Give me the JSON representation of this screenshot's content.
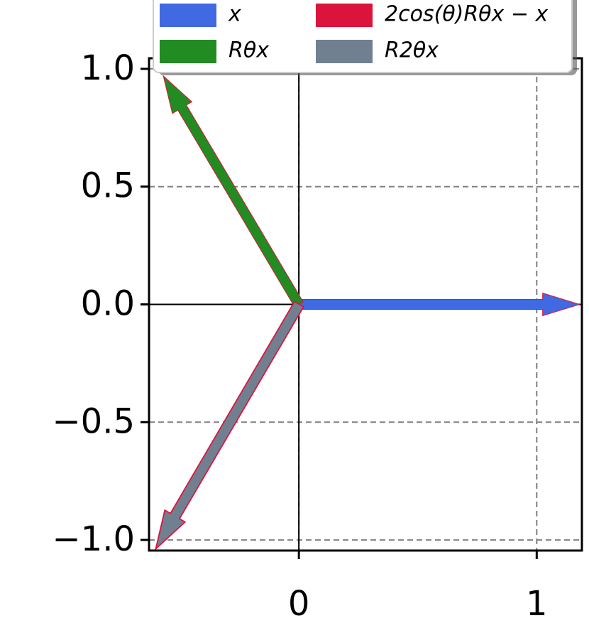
{
  "chart_data": {
    "type": "quiver",
    "series": [
      {
        "name": "x",
        "color": "#4169e1",
        "values": [
          1.18,
          0
        ]
      },
      {
        "name": "Rθx",
        "color": "#228b22",
        "values": [
          -0.57,
          0.97
        ]
      },
      {
        "name": "2cos(θ)Rθx − x",
        "color": "#dc143c",
        "values": [
          -0.6,
          -1.035
        ]
      },
      {
        "name": "R2θx",
        "color": "#708090",
        "values": [
          -0.6,
          -1.035
        ]
      }
    ],
    "xlim": [
      -0.63,
      1.19
    ],
    "ylim": [
      -1.045,
      1.045
    ],
    "xticks": [
      0,
      1
    ],
    "yticks": [
      {
        "value": -1,
        "label": "−1.0"
      },
      {
        "value": -0.5,
        "label": "−0.5"
      },
      {
        "value": 0,
        "label": "0.0"
      },
      {
        "value": 0.5,
        "label": "0.5"
      },
      {
        "value": 1,
        "label": "1.0"
      }
    ],
    "grid": true,
    "legend": "upper center",
    "legend_columns": 2
  }
}
